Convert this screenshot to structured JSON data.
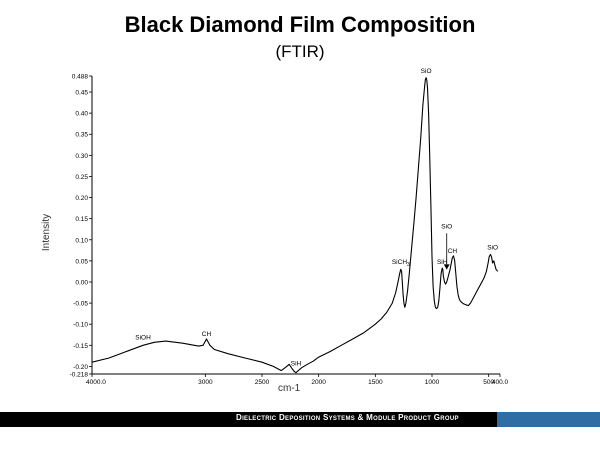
{
  "slide": {
    "title": "Black Diamond Film Composition",
    "subtitle": "(FTIR)",
    "footer": "Dielectric Deposition Systems & Module Product Group",
    "footer_bar_color": "#000000",
    "footer_accent_color": "#2f6ea5"
  },
  "chart_data": {
    "type": "line",
    "xlabel": "cm-1",
    "ylabel": "Intensity",
    "xlim": [
      4000.0,
      400.0
    ],
    "ylim": [
      -0.218,
      0.488
    ],
    "x_reversed": true,
    "grid": false,
    "y_ticks": [
      "0.488",
      "0.45",
      "0.40",
      "0.35",
      "0.30",
      "0.25",
      "0.20",
      "0.15",
      "0.10",
      "0.05",
      "0.00",
      "-0.05",
      "-0.10",
      "-0.15",
      "-0.20",
      "-0.218"
    ],
    "y_tick_values": [
      0.488,
      0.45,
      0.4,
      0.35,
      0.3,
      0.25,
      0.2,
      0.15,
      0.1,
      0.05,
      0.0,
      -0.05,
      -0.1,
      -0.15,
      -0.2,
      -0.218
    ],
    "x_ticks": [
      "4000.0",
      "3000",
      "2500",
      "2000",
      "1500",
      "1000",
      "500",
      "400.0"
    ],
    "x_tick_values": [
      4000,
      3000,
      2500,
      2000,
      1500,
      1000,
      500,
      400
    ],
    "series": [
      {
        "color": "#000000",
        "x": [
          4000,
          3850,
          3700,
          3550,
          3450,
          3350,
          3200,
          3060,
          3020,
          2990,
          2960,
          2920,
          2800,
          2650,
          2500,
          2400,
          2330,
          2290,
          2260,
          2235,
          2215,
          2200,
          2180,
          2150,
          2100,
          2050,
          2000,
          1900,
          1800,
          1700,
          1600,
          1500,
          1450,
          1400,
          1350,
          1320,
          1300,
          1285,
          1275,
          1268,
          1262,
          1255,
          1248,
          1240,
          1230,
          1215,
          1200,
          1180,
          1160,
          1140,
          1120,
          1100,
          1090,
          1080,
          1070,
          1063,
          1058,
          1052,
          1046,
          1040,
          1030,
          1020,
          1010,
          1000,
          990,
          980,
          970,
          960,
          950,
          940,
          930,
          920,
          910,
          905,
          900,
          890,
          880,
          870,
          860,
          850,
          840,
          830,
          820,
          810,
          800,
          790,
          780,
          770,
          760,
          750,
          740,
          730,
          720,
          700,
          680,
          660,
          640,
          620,
          600,
          580,
          560,
          540,
          520,
          505,
          495,
          485,
          475,
          465,
          455,
          445,
          435,
          420
        ],
        "y": [
          -0.19,
          -0.18,
          -0.165,
          -0.15,
          -0.143,
          -0.14,
          -0.145,
          -0.152,
          -0.15,
          -0.135,
          -0.15,
          -0.16,
          -0.17,
          -0.18,
          -0.19,
          -0.2,
          -0.21,
          -0.202,
          -0.195,
          -0.205,
          -0.212,
          -0.215,
          -0.21,
          -0.203,
          -0.195,
          -0.188,
          -0.178,
          -0.165,
          -0.15,
          -0.135,
          -0.12,
          -0.1,
          -0.088,
          -0.072,
          -0.05,
          -0.025,
          0.0,
          0.02,
          0.03,
          0.025,
          0.0,
          -0.03,
          -0.05,
          -0.06,
          -0.05,
          -0.02,
          0.02,
          0.08,
          0.14,
          0.2,
          0.27,
          0.34,
          0.38,
          0.42,
          0.45,
          0.47,
          0.48,
          0.484,
          0.478,
          0.46,
          0.4,
          0.3,
          0.18,
          0.06,
          -0.01,
          -0.045,
          -0.06,
          -0.063,
          -0.06,
          -0.045,
          -0.015,
          0.02,
          0.033,
          0.03,
          0.015,
          0.0,
          -0.005,
          0.0,
          0.01,
          0.02,
          0.03,
          0.045,
          0.058,
          0.062,
          0.05,
          0.02,
          -0.01,
          -0.03,
          -0.04,
          -0.045,
          -0.048,
          -0.05,
          -0.052,
          -0.054,
          -0.056,
          -0.05,
          -0.04,
          -0.03,
          -0.02,
          -0.01,
          0.0,
          0.01,
          0.025,
          0.045,
          0.06,
          0.065,
          0.06,
          0.045,
          0.05,
          0.04,
          0.03,
          0.025
        ]
      }
    ],
    "annotations": [
      {
        "label": "SiOH",
        "x": 3550,
        "y": -0.143
      },
      {
        "label": "CH",
        "x": 2990,
        "y": -0.135
      },
      {
        "label": "SiH",
        "x": 2200,
        "y": -0.205
      },
      {
        "label": "SiCH3",
        "x": 1275,
        "y": 0.035
      },
      {
        "label": "SiO",
        "x": 1052,
        "y": 0.488
      },
      {
        "label": "SiH",
        "x": 910,
        "y": 0.036
      },
      {
        "label": "SiO",
        "x": 870,
        "y": 0.12
      },
      {
        "label": "CH",
        "x": 820,
        "y": 0.062
      },
      {
        "label": "SiO",
        "x": 465,
        "y": 0.07
      }
    ]
  }
}
